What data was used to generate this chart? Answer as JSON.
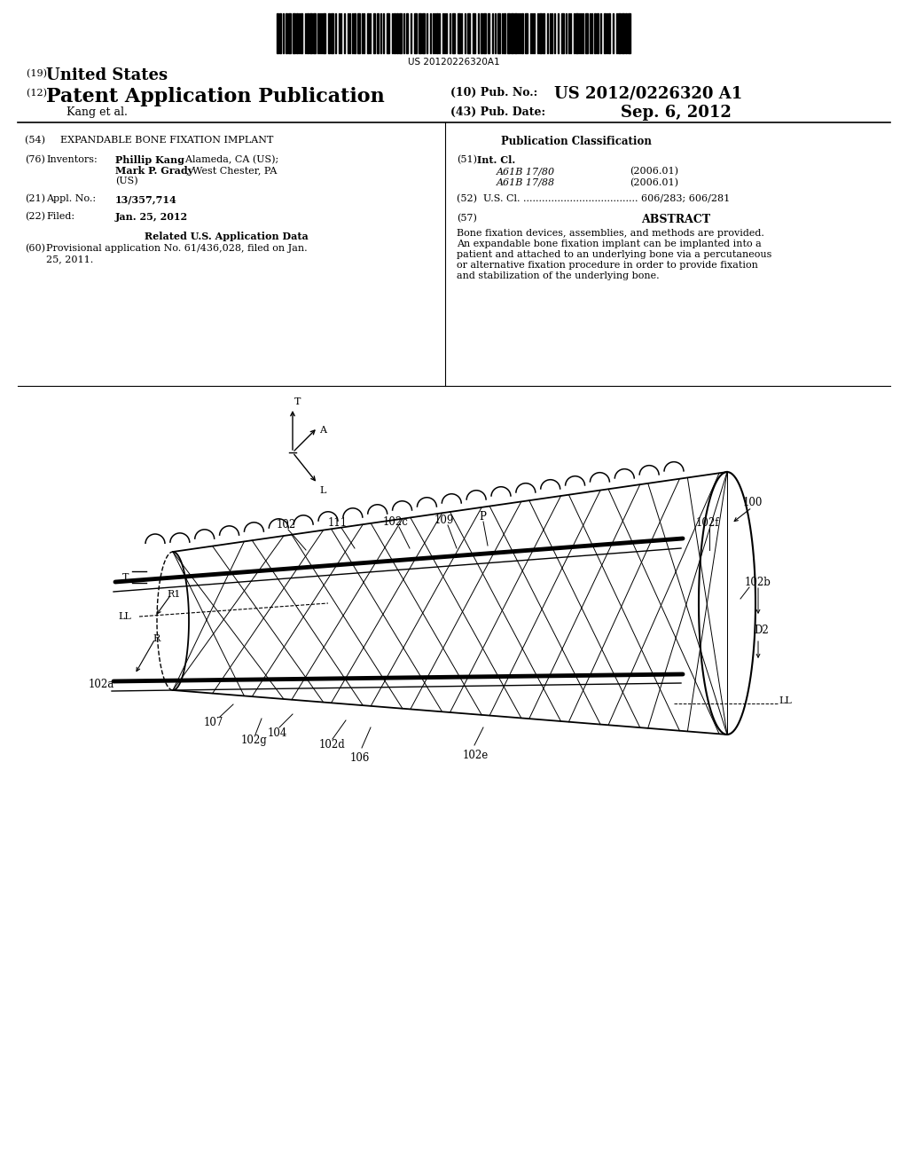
{
  "bg_color": "#ffffff",
  "barcode_text": "US 20120226320A1",
  "title_19": "(19) United States",
  "title_12": "(12) Patent Application Publication",
  "pub_no_label": "(10) Pub. No.:",
  "pub_no_value": "US 2012/0226320 A1",
  "author": "Kang et al.",
  "pub_date_label": "(43) Pub. Date:",
  "pub_date_value": "Sep. 6, 2012",
  "field54": "(54)   EXPANDABLE BONE FIXATION IMPLANT",
  "pub_class_title": "Publication Classification",
  "field51_italic1": "A61B 17/80",
  "field51_italic2": "A61B 17/88",
  "field51_date1": "(2006.01)",
  "field51_date2": "(2006.01)",
  "field52": "(52)  U.S. Cl. ..................................... 606/283; 606/281",
  "field21_value": "13/357,714",
  "field57_title": "ABSTRACT",
  "abstract_text": "Bone fixation devices, assemblies, and methods are provided.\nAn expandable bone fixation implant can be implanted into a\npatient and attached to an underlying bone via a percutaneous\nor alternative fixation procedure in order to provide fixation\nand stabilization of the underlying bone.",
  "field22_value": "Jan. 25, 2012",
  "related_title": "Related U.S. Application Data",
  "text_color": "#000000",
  "line_color": "#000000"
}
